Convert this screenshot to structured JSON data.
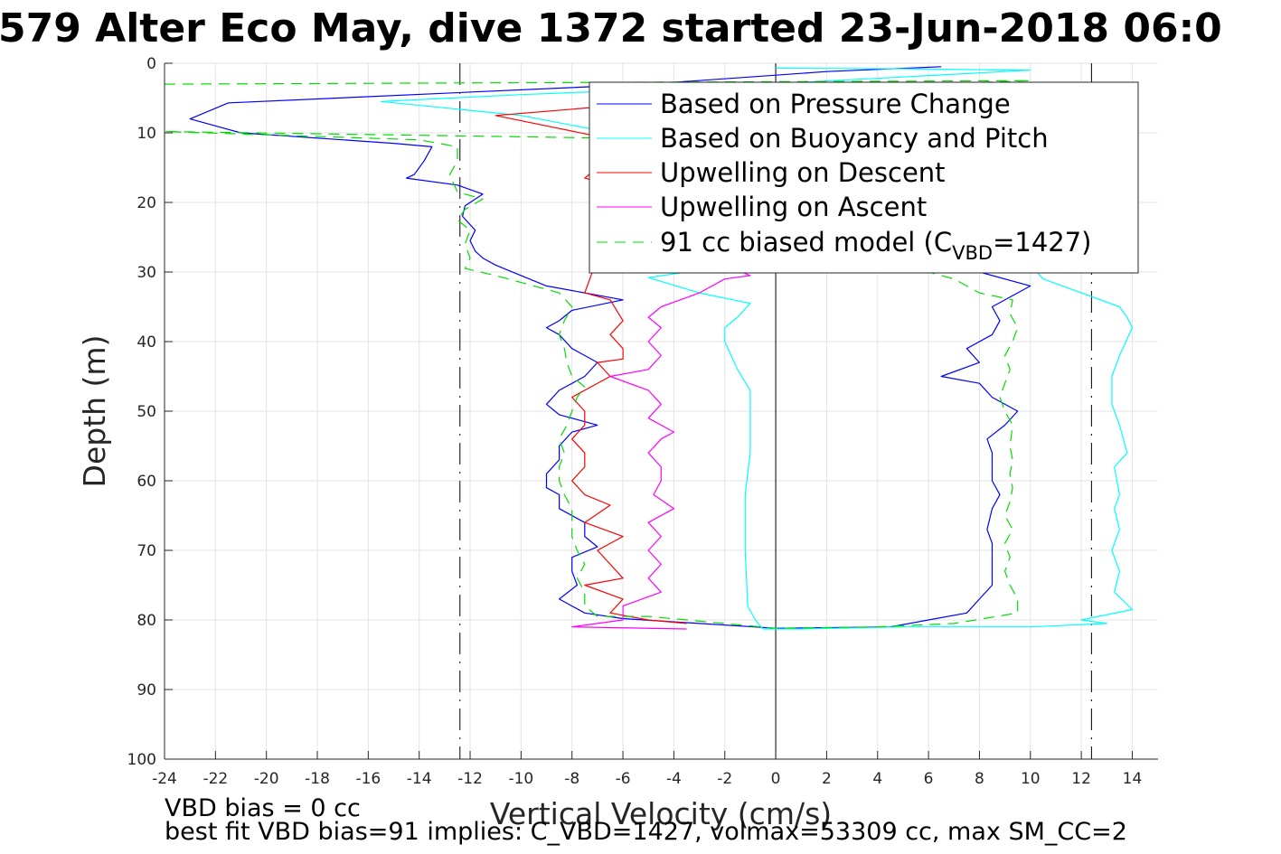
{
  "chart_data": {
    "type": "line",
    "title": "579 Alter Eco May, dive 1372 started 23-Jun-2018 06:0",
    "xlabel": "Vertical Velocity (cm/s)",
    "ylabel": "Depth (m)",
    "xlim": [
      -24,
      15
    ],
    "ylim": [
      0,
      100
    ],
    "y_reversed": true,
    "grid": true,
    "xticks": [
      -24,
      -22,
      -20,
      -18,
      -16,
      -14,
      -12,
      -10,
      -8,
      -6,
      -4,
      -2,
      0,
      2,
      4,
      6,
      8,
      10,
      12,
      14
    ],
    "xtick_labels": [
      "-24",
      "-22",
      "-20",
      "-18",
      "-16",
      "-14",
      "-12",
      "-10",
      "-8",
      "-6",
      "-4",
      "-2",
      "0",
      "2",
      "4",
      "6",
      "8",
      "10",
      "12",
      "14"
    ],
    "yticks": [
      0,
      10,
      20,
      30,
      40,
      50,
      60,
      70,
      80,
      90,
      100
    ],
    "ytick_labels": [
      "0",
      "10",
      "20",
      "30",
      "40",
      "50",
      "60",
      "70",
      "80",
      "90",
      "100"
    ],
    "reference_lines": [
      {
        "x": -12.4,
        "style": "dashdot",
        "color": "#000000"
      },
      {
        "x": 12.4,
        "style": "dashdot",
        "color": "#000000"
      },
      {
        "x": 0,
        "style": "solid",
        "color": "#000000"
      }
    ],
    "legend_position": "top-right",
    "legend": [
      {
        "label": "Based on Pressure Change",
        "color": "#0000ff",
        "style": "solid"
      },
      {
        "label": "Based on Buoyancy and Pitch",
        "color": "#00ffff",
        "style": "solid"
      },
      {
        "label": "Upwelling on Descent",
        "color": "#ff0000",
        "style": "solid"
      },
      {
        "label": "Upwelling on Ascent",
        "color": "#ff00ff",
        "style": "solid"
      },
      {
        "label_prefix": "91 cc biased model (C",
        "label_sub": "VBD",
        "label_suffix": "=1427)",
        "color": "#00dd00",
        "style": "dashed"
      }
    ],
    "series": [
      {
        "name": "Based on Pressure Change",
        "color": "#0000ff",
        "dash": "",
        "points": [
          [
            6.5,
            0.5
          ],
          [
            2,
            1.2
          ],
          [
            -5,
            3
          ],
          [
            -21.5,
            5.7
          ],
          [
            -23,
            8
          ],
          [
            -21,
            10
          ],
          [
            -15,
            11.5
          ],
          [
            -13.5,
            12
          ],
          [
            -13.8,
            14
          ],
          [
            -14.2,
            16
          ],
          [
            -14.5,
            16.5
          ],
          [
            -12.5,
            17.5
          ],
          [
            -11.5,
            18.8
          ],
          [
            -12.2,
            20.5
          ],
          [
            -12.3,
            22
          ],
          [
            -11.8,
            24
          ],
          [
            -12,
            25.5
          ],
          [
            -11.8,
            27
          ],
          [
            -11.5,
            28
          ],
          [
            -11,
            29
          ],
          [
            -10,
            30.5
          ],
          [
            -9,
            32
          ],
          [
            -7.5,
            33
          ],
          [
            -6,
            34
          ],
          [
            -8,
            35.5
          ],
          [
            -8.5,
            37
          ],
          [
            -9,
            38
          ],
          [
            -8.5,
            39
          ],
          [
            -8,
            41
          ],
          [
            -7.5,
            42
          ],
          [
            -7,
            43
          ],
          [
            -7.5,
            45
          ],
          [
            -8.5,
            47
          ],
          [
            -9,
            49
          ],
          [
            -8.5,
            50.5
          ],
          [
            -7,
            52
          ],
          [
            -8,
            53
          ],
          [
            -8.5,
            55
          ],
          [
            -8.5,
            57
          ],
          [
            -9,
            59
          ],
          [
            -9,
            61
          ],
          [
            -8.5,
            62
          ],
          [
            -8.5,
            64
          ],
          [
            -7.5,
            66
          ],
          [
            -7.5,
            68
          ],
          [
            -7,
            69.5
          ],
          [
            -8,
            71
          ],
          [
            -8,
            73
          ],
          [
            -7.8,
            75
          ],
          [
            -8.5,
            77
          ],
          [
            -7.5,
            79
          ],
          [
            -6,
            79.8
          ],
          [
            -3,
            80.5
          ],
          [
            0,
            81.2
          ],
          [
            4.5,
            81
          ],
          [
            6,
            80
          ],
          [
            7.5,
            79
          ],
          [
            8,
            77
          ],
          [
            8.5,
            75
          ],
          [
            8.5,
            73
          ],
          [
            8.5,
            71
          ],
          [
            8.5,
            69
          ],
          [
            8.3,
            67
          ],
          [
            8.5,
            64
          ],
          [
            8.8,
            62
          ],
          [
            8.5,
            60
          ],
          [
            8.5,
            58
          ],
          [
            8.5,
            56
          ],
          [
            8.3,
            54
          ],
          [
            9,
            52
          ],
          [
            9.5,
            50
          ],
          [
            8.5,
            48
          ],
          [
            8,
            46
          ],
          [
            6.5,
            45
          ],
          [
            8,
            43
          ],
          [
            7.5,
            41
          ],
          [
            8.5,
            39
          ],
          [
            8.8,
            37
          ],
          [
            8.5,
            35
          ],
          [
            9.5,
            33
          ],
          [
            10,
            32
          ],
          [
            8,
            30
          ]
        ]
      },
      {
        "name": "Based on Buoyancy and Pitch",
        "color": "#00ffff",
        "dash": "",
        "points": [
          [
            0,
            0.7
          ],
          [
            5,
            0.8
          ],
          [
            10,
            1
          ],
          [
            -3,
            3.5
          ],
          [
            -10,
            4.5
          ],
          [
            -15.5,
            5.5
          ],
          [
            -10,
            7.5
          ],
          [
            -5,
            11
          ],
          [
            -2.5,
            14.5
          ],
          [
            -1.5,
            20
          ],
          [
            -1.5,
            26
          ],
          [
            -2,
            29
          ],
          [
            -3.5,
            30
          ],
          [
            -5,
            30.8
          ],
          [
            -3,
            33
          ],
          [
            -1,
            34.5
          ],
          [
            -1.5,
            36.5
          ],
          [
            -2,
            38
          ],
          [
            -2,
            40
          ],
          [
            -1.5,
            44
          ],
          [
            -1,
            47
          ],
          [
            -1,
            49
          ],
          [
            -1,
            52
          ],
          [
            -1,
            56
          ],
          [
            -1.2,
            62
          ],
          [
            -1.2,
            70
          ],
          [
            -1.1,
            78
          ],
          [
            -0.8,
            80
          ],
          [
            -0.5,
            81.3
          ],
          [
            1,
            81.3
          ],
          [
            5,
            81
          ],
          [
            10,
            81
          ],
          [
            13,
            80.5
          ],
          [
            12,
            80
          ],
          [
            14,
            78.5
          ],
          [
            13.3,
            76
          ],
          [
            13.5,
            73
          ],
          [
            13.2,
            70
          ],
          [
            13.5,
            67
          ],
          [
            13.3,
            64
          ],
          [
            13.5,
            62
          ],
          [
            13.3,
            58
          ],
          [
            13.8,
            56
          ],
          [
            13.5,
            52
          ],
          [
            13.2,
            49
          ],
          [
            13.2,
            45
          ],
          [
            13.5,
            42
          ],
          [
            14,
            38
          ],
          [
            13.8,
            36.5
          ],
          [
            13.5,
            35
          ],
          [
            12,
            33
          ],
          [
            10.5,
            31
          ],
          [
            10,
            29
          ]
        ]
      },
      {
        "name": "Upwelling on Descent",
        "color": "#ff0000",
        "dash": "",
        "points": [
          [
            -6,
            6
          ],
          [
            -11,
            7.5
          ],
          [
            -9,
            9
          ],
          [
            -7,
            10.5
          ],
          [
            -6,
            11.5
          ],
          [
            -7,
            15
          ],
          [
            -7.5,
            16.5
          ],
          [
            -6,
            18
          ],
          [
            -6,
            20
          ],
          [
            -6.5,
            25
          ],
          [
            -7,
            28
          ],
          [
            -7.5,
            33
          ],
          [
            -6.5,
            34
          ],
          [
            -6,
            37
          ],
          [
            -6.5,
            39
          ],
          [
            -6,
            41
          ],
          [
            -6,
            42.5
          ],
          [
            -7,
            43
          ],
          [
            -6.5,
            45
          ],
          [
            -8,
            48
          ],
          [
            -7.5,
            50
          ],
          [
            -7.5,
            52
          ],
          [
            -8,
            54
          ],
          [
            -7.5,
            56
          ],
          [
            -7.5,
            58
          ],
          [
            -8,
            60
          ],
          [
            -7.5,
            62
          ],
          [
            -6.5,
            63.5
          ],
          [
            -7.5,
            66
          ],
          [
            -6,
            68
          ],
          [
            -7,
            70
          ],
          [
            -6.5,
            72
          ],
          [
            -6,
            74
          ],
          [
            -7.5,
            75
          ],
          [
            -6,
            77
          ],
          [
            -6.5,
            79
          ],
          [
            -5,
            80
          ],
          [
            -3.5,
            80.5
          ]
        ]
      },
      {
        "name": "Upwelling on Ascent",
        "color": "#ff00ff",
        "dash": "",
        "points": [
          [
            -3.5,
            81.3
          ],
          [
            -8,
            81
          ],
          [
            -6,
            80
          ],
          [
            -6,
            78
          ],
          [
            -4.5,
            76
          ],
          [
            -5,
            74
          ],
          [
            -4.5,
            72
          ],
          [
            -5,
            70
          ],
          [
            -4.5,
            68
          ],
          [
            -5,
            66
          ],
          [
            -4,
            64
          ],
          [
            -4.8,
            62
          ],
          [
            -4.5,
            60
          ],
          [
            -4.5,
            58
          ],
          [
            -5,
            56
          ],
          [
            -4.5,
            54
          ],
          [
            -4,
            53
          ],
          [
            -5,
            51
          ],
          [
            -4.5,
            49
          ],
          [
            -5,
            47
          ],
          [
            -6.5,
            45
          ],
          [
            -5,
            44
          ],
          [
            -4.5,
            42
          ],
          [
            -5,
            40
          ],
          [
            -4.5,
            38
          ],
          [
            -5,
            36.5
          ],
          [
            -4.5,
            35
          ],
          [
            -3,
            33
          ],
          [
            -2,
            31
          ],
          [
            -1,
            30.5
          ],
          [
            -2,
            29
          ]
        ]
      },
      {
        "name": "91 cc biased model",
        "color": "#00dd00",
        "dash": "12,8",
        "points": [
          [
            -24,
            3
          ],
          [
            10,
            2.5
          ],
          [
            -2,
            4
          ],
          [
            -5,
            7
          ],
          [
            -2,
            11
          ],
          [
            -24,
            9.8
          ],
          [
            -14,
            11
          ],
          [
            -12.5,
            12
          ],
          [
            -12.5,
            14
          ],
          [
            -12.8,
            16
          ],
          [
            -12.5,
            18.5
          ],
          [
            -11.5,
            19.5
          ],
          [
            -12.2,
            21
          ],
          [
            -12.5,
            22.5
          ],
          [
            -12,
            24
          ],
          [
            -12.2,
            26
          ],
          [
            -12,
            28
          ],
          [
            -12.2,
            29.5
          ],
          [
            -11,
            30.5
          ],
          [
            -9.5,
            32
          ],
          [
            -8.5,
            33
          ],
          [
            -8,
            35
          ],
          [
            -8.3,
            37
          ],
          [
            -8.5,
            39
          ],
          [
            -8.3,
            41
          ],
          [
            -8.2,
            43
          ],
          [
            -8,
            45
          ],
          [
            -7.5,
            46.5
          ],
          [
            -7.8,
            48
          ],
          [
            -8,
            50
          ],
          [
            -8.2,
            52
          ],
          [
            -8.5,
            54
          ],
          [
            -8.3,
            56
          ],
          [
            -8.5,
            58
          ],
          [
            -8.5,
            60
          ],
          [
            -8.3,
            62
          ],
          [
            -8,
            64
          ],
          [
            -8,
            66
          ],
          [
            -8,
            68
          ],
          [
            -7.8,
            70
          ],
          [
            -7.5,
            72
          ],
          [
            -7.8,
            74
          ],
          [
            -7.5,
            76
          ],
          [
            -7.5,
            78
          ],
          [
            -7,
            79.5
          ],
          [
            -5,
            79.5
          ],
          [
            -2,
            80.5
          ],
          [
            0,
            81.2
          ],
          [
            4,
            81
          ],
          [
            7,
            80.5
          ],
          [
            9.5,
            79
          ],
          [
            9.5,
            77
          ],
          [
            9.2,
            75
          ],
          [
            9,
            73
          ],
          [
            9.2,
            71
          ],
          [
            9,
            69
          ],
          [
            9.3,
            67
          ],
          [
            9,
            65
          ],
          [
            9.2,
            63
          ],
          [
            9.3,
            61
          ],
          [
            9.2,
            59
          ],
          [
            9.3,
            57
          ],
          [
            9.2,
            55
          ],
          [
            9.3,
            52
          ],
          [
            9,
            50
          ],
          [
            8.8,
            48
          ],
          [
            9,
            46
          ],
          [
            9.2,
            44
          ],
          [
            9,
            42
          ],
          [
            9.3,
            40
          ],
          [
            9.5,
            38
          ],
          [
            9.2,
            36
          ],
          [
            9.3,
            34
          ],
          [
            8,
            33
          ],
          [
            7,
            31
          ],
          [
            6,
            30
          ]
        ]
      }
    ]
  },
  "notes": {
    "line1": "VBD bias = 0 cc",
    "line2": "best fit VBD bias=91 implies: C_VBD=1427, volmax=53309 cc, max SM_CC=2"
  }
}
